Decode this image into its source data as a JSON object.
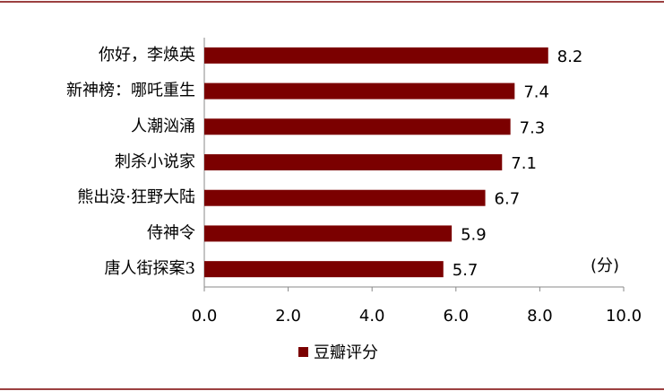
{
  "chart_data": {
    "type": "bar",
    "orientation": "horizontal",
    "categories": [
      "你好，李焕英",
      "新神榜：哪吒重生",
      "人潮汹涌",
      "刺杀小说家",
      "熊出没·狂野大陆",
      "侍神令",
      "唐人街探案3"
    ],
    "series": [
      {
        "name": "豆瓣评分",
        "color": "#7b0000",
        "values": [
          8.2,
          7.4,
          7.3,
          7.1,
          6.7,
          5.9,
          5.7
        ]
      }
    ],
    "xlim": [
      0,
      10
    ],
    "xticks": [
      {
        "value": 0,
        "label": "0.0"
      },
      {
        "value": 2,
        "label": "2.0"
      },
      {
        "value": 4,
        "label": "4.0"
      },
      {
        "value": 6,
        "label": "6.0"
      },
      {
        "value": 8,
        "label": "8.0"
      },
      {
        "value": 10,
        "label": "10.0"
      }
    ],
    "annotation": "(分)",
    "legend": "bottom",
    "show_value_labels": true
  }
}
